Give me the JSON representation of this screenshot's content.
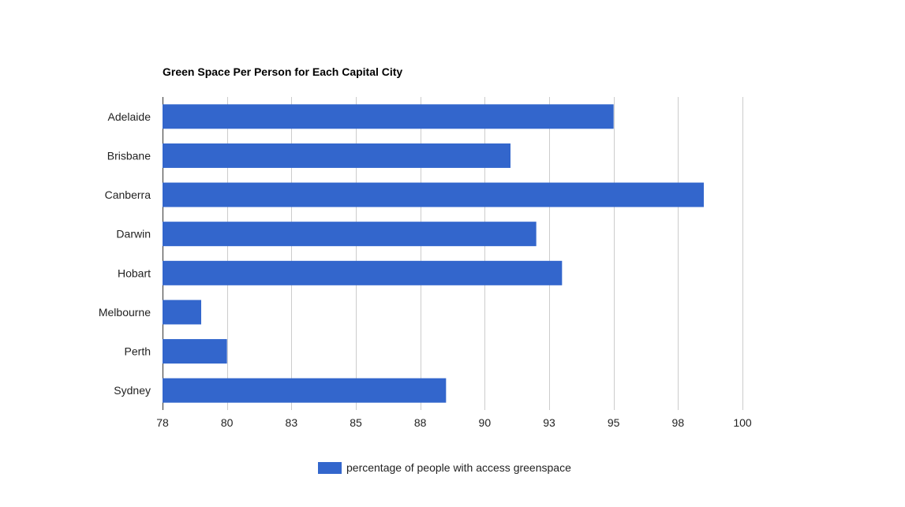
{
  "chart_data": {
    "type": "bar",
    "orientation": "horizontal",
    "title": "Green Space Per Person for Each Capital City",
    "categories": [
      "Adelaide",
      "Brisbane",
      "Canberra",
      "Darwin",
      "Hobart",
      "Melbourne",
      "Perth",
      "Sydney"
    ],
    "series": [
      {
        "name": "percentage of people with access greenspace",
        "values": [
          95,
          91,
          98.5,
          92,
          93,
          79,
          80,
          88.5
        ],
        "color": "#3366cc"
      }
    ],
    "xlim": [
      77.5,
      100
    ],
    "xticks": [
      77.5,
      80,
      82.5,
      85,
      87.5,
      90,
      92.5,
      95,
      97.5,
      100
    ],
    "xtick_labels": [
      "78",
      "80",
      "83",
      "85",
      "88",
      "90",
      "93",
      "95",
      "98",
      "100"
    ],
    "grid": true,
    "legend_position": "bottom"
  }
}
